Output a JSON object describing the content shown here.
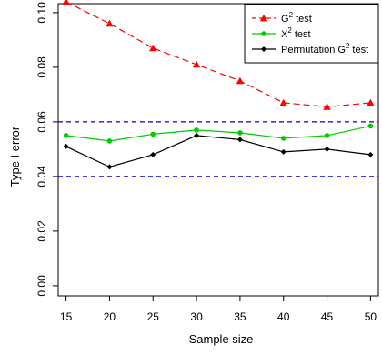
{
  "chart_data": {
    "type": "line",
    "x": [
      15,
      20,
      25,
      30,
      35,
      40,
      45,
      50
    ],
    "xlabel": "Sample size",
    "ylabel": "Type I error",
    "xticks": [
      "15",
      "20",
      "25",
      "30",
      "35",
      "40",
      "45",
      "50"
    ],
    "yticks": [
      "0.00",
      "0.02",
      "0.04",
      "0.06",
      "0.08",
      "0.10"
    ],
    "ylim": [
      0,
      0.1
    ],
    "grid": false,
    "legend_position": "top-right",
    "reference_lines": {
      "values": [
        0.04,
        0.06
      ],
      "color": "#0000cc",
      "style": "dashed"
    },
    "series": [
      {
        "name": "G² test",
        "name_base": "G",
        "name_sup": "2",
        "name_rest": " test",
        "color": "#ff0000",
        "marker": "triangle",
        "values": [
          0.104,
          0.096,
          0.087,
          0.081,
          0.075,
          0.067,
          0.0655,
          0.067
        ]
      },
      {
        "name": "X² test",
        "name_base": "X",
        "name_sup": "2",
        "name_rest": " test",
        "color": "#00cc00",
        "marker": "circle",
        "values": [
          0.055,
          0.053,
          0.0555,
          0.057,
          0.056,
          0.054,
          0.055,
          0.0585
        ]
      },
      {
        "name": "Permutation G² test",
        "name_base": "Permutation G",
        "name_sup": "2",
        "name_rest": " test",
        "color": "#000000",
        "marker": "diamond",
        "values": [
          0.051,
          0.0435,
          0.048,
          0.055,
          0.0535,
          0.049,
          0.05,
          0.048
        ]
      }
    ]
  }
}
